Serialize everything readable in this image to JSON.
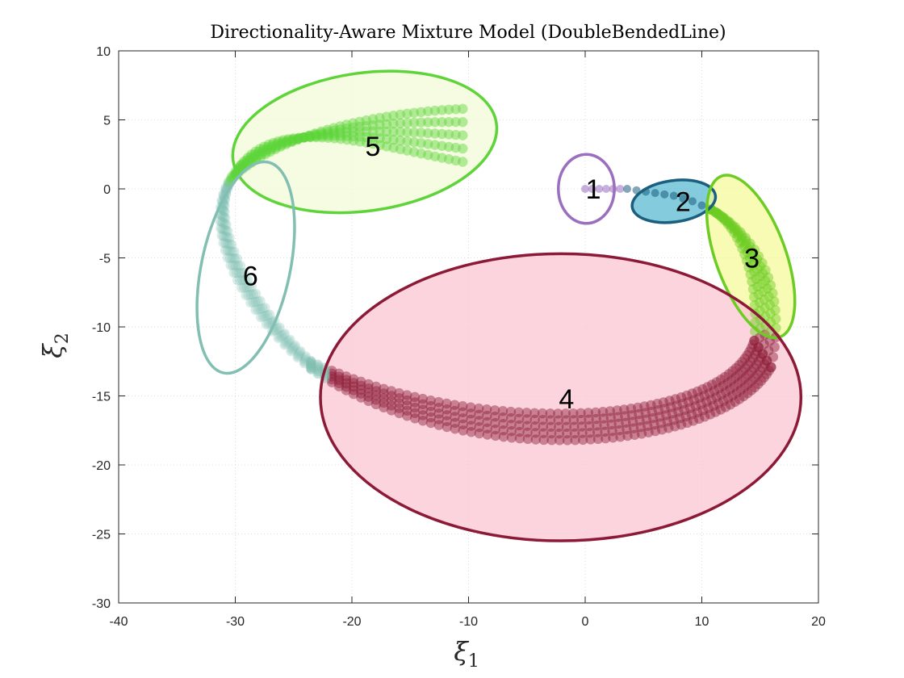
{
  "chart_data": {
    "type": "scatter",
    "title": "Directionality-Aware Mixture Model (DoubleBendedLine)",
    "xlabel": "ξ",
    "xlabel_sub": "1",
    "ylabel": "ξ",
    "ylabel_sub": "2",
    "xlim": [
      -40,
      20
    ],
    "ylim": [
      -30,
      10
    ],
    "xticks": [
      -40,
      -30,
      -20,
      -10,
      0,
      10,
      20
    ],
    "yticks": [
      -30,
      -25,
      -20,
      -15,
      -10,
      -5,
      0,
      5,
      10
    ],
    "grid": true,
    "legend": "none",
    "series": [
      {
        "cluster": "1",
        "color": "#9b6fc0",
        "fill": "none",
        "ellipse": {
          "cx": 0.1,
          "cy": 0.0,
          "rx": 2.4,
          "ry": 2.5,
          "angle": 0
        },
        "label_pos": [
          0.7,
          0.0
        ],
        "points": [
          [
            0,
            0
          ],
          [
            0.6,
            0
          ],
          [
            1.2,
            0
          ],
          [
            1.8,
            0
          ],
          [
            2.4,
            0
          ],
          [
            3.0,
            0
          ]
        ]
      },
      {
        "cluster": "2",
        "color": "#1b5e7e",
        "fill": "#5bbad1",
        "ellipse": {
          "cx": 7.6,
          "cy": -0.9,
          "rx": 3.6,
          "ry": 1.5,
          "angle": -8
        },
        "label_pos": [
          8.4,
          -0.9
        ],
        "points": [
          [
            3.6,
            0
          ],
          [
            4.4,
            -0.1
          ],
          [
            5.2,
            -0.2
          ],
          [
            6.0,
            -0.3
          ],
          [
            6.8,
            -0.4
          ],
          [
            7.6,
            -0.5
          ],
          [
            8.4,
            -0.7
          ],
          [
            9.2,
            -0.9
          ],
          [
            10.0,
            -1.2
          ],
          [
            10.8,
            -1.5
          ]
        ]
      },
      {
        "cluster": "3",
        "color": "#6ccc23",
        "fill": "#f5f99a",
        "ellipse": {
          "cx": 14.2,
          "cy": -4.9,
          "rx": 3.0,
          "ry": 6.2,
          "angle": -20
        },
        "label_pos": [
          14.3,
          -5.0
        ],
        "points": []
      },
      {
        "cluster": "4",
        "color": "#8c1a36",
        "fill": "#f9c5d3",
        "ellipse": {
          "cx": -2.1,
          "cy": -15.1,
          "rx": 20.6,
          "ry": 10.4,
          "angle": 0
        },
        "label_pos": [
          -1.6,
          -15.2
        ],
        "points": []
      },
      {
        "cluster": "5",
        "color": "#5ed43a",
        "fill": "#f3fbd7",
        "ellipse": {
          "cx": -18.9,
          "cy": 3.4,
          "rx": 11.4,
          "ry": 5.0,
          "angle": -8
        },
        "label_pos": [
          -18.2,
          3.1
        ],
        "points": []
      },
      {
        "cluster": "6",
        "color": "#82bfb2",
        "fill": "none",
        "ellipse": {
          "cx": -29.1,
          "cy": -5.7,
          "rx": 3.8,
          "ry": 7.8,
          "angle": 12
        },
        "label_pos": [
          -28.7,
          -6.3
        ],
        "points": []
      }
    ],
    "trajectories": [
      {
        "offset": 0
      },
      {
        "offset": 1
      },
      {
        "offset": 2
      },
      {
        "offset": 3
      },
      {
        "offset": 4
      }
    ]
  }
}
